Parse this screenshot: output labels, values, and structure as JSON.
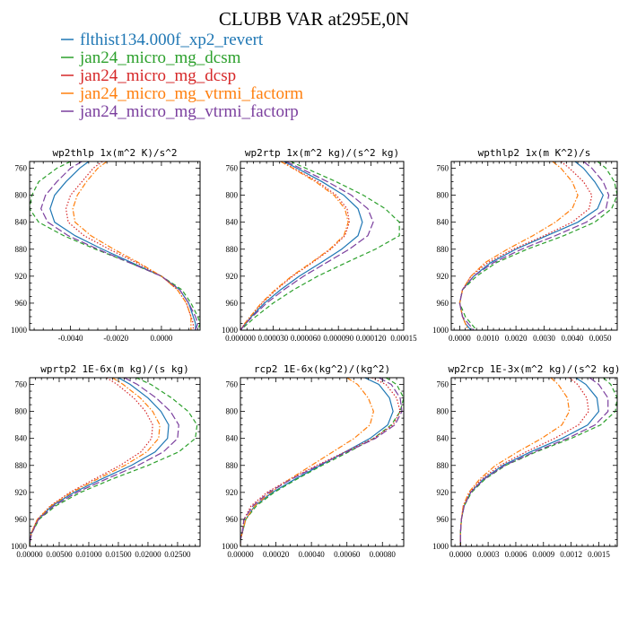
{
  "figure": {
    "title": "CLUBB VAR at295E,0N"
  },
  "chart_data": [
    {
      "type": "line",
      "title": "wp2thlp  1x(m^2 K)/s^2",
      "xlabel": "",
      "ylabel": "",
      "xlim": [
        -0.0058,
        0.0017
      ],
      "ylim": [
        750,
        1000
      ],
      "y_reversed": true,
      "xticks": [
        -0.004,
        -0.002,
        0.0
      ],
      "xtick_labels": [
        "-0.0040",
        "-0.0020",
        "0.0000"
      ],
      "yticks": [
        760,
        800,
        840,
        880,
        920,
        960,
        1000
      ],
      "y": [
        750,
        760,
        780,
        800,
        820,
        840,
        860,
        880,
        900,
        920,
        940,
        960,
        980,
        990,
        1000
      ],
      "series": [
        {
          "name": "flthist134.000f_xp2_revert",
          "values": [
            -0.0032,
            -0.0036,
            -0.0042,
            -0.0047,
            -0.0049,
            -0.0047,
            -0.0038,
            -0.0026,
            -0.0013,
            0.0,
            0.0008,
            0.0012,
            0.0014,
            0.0015,
            0.0015
          ]
        },
        {
          "name": "jan24_micro_mg_dcsm",
          "values": [
            -0.004,
            -0.0046,
            -0.0054,
            -0.0057,
            -0.0058,
            -0.0054,
            -0.0043,
            -0.0029,
            -0.0014,
            0.0,
            0.0009,
            0.0013,
            0.0016,
            0.0017,
            0.0016
          ]
        },
        {
          "name": "jan24_micro_mg_dcsp",
          "values": [
            -0.0026,
            -0.003,
            -0.0035,
            -0.004,
            -0.0042,
            -0.0041,
            -0.0034,
            -0.0023,
            -0.0011,
            0.0,
            0.0007,
            0.0011,
            0.0013,
            0.0014,
            0.0014
          ]
        },
        {
          "name": "jan24_micro_mg_vtrmi_factorm",
          "values": [
            -0.0024,
            -0.0028,
            -0.0033,
            -0.0037,
            -0.0039,
            -0.0038,
            -0.0031,
            -0.0021,
            -0.001,
            0.0,
            0.0007,
            0.0011,
            0.0013,
            0.0013,
            0.0013
          ]
        },
        {
          "name": "jan24_micro_mg_vtrmi_factorp",
          "values": [
            -0.0035,
            -0.004,
            -0.0046,
            -0.0051,
            -0.0053,
            -0.005,
            -0.0041,
            -0.0028,
            -0.0014,
            0.0,
            0.0008,
            0.0012,
            0.0015,
            0.0016,
            0.0015
          ]
        }
      ]
    },
    {
      "type": "line",
      "title": "wp2rtp  1x(m^2 kg)/(s^2 kg)",
      "xlabel": "",
      "ylabel": "",
      "xlim": [
        0.0,
        0.00015
      ],
      "ylim": [
        750,
        1000
      ],
      "y_reversed": true,
      "xticks": [
        0.0,
        3e-05,
        6e-05,
        9e-05,
        0.00012,
        0.00015
      ],
      "xtick_labels": [
        "0.000000",
        "0.000030",
        "0.000060",
        "0.000090",
        "0.000120",
        "0.00015"
      ],
      "yticks": [
        760,
        800,
        840,
        880,
        920,
        960,
        1000
      ],
      "y": [
        750,
        760,
        780,
        800,
        820,
        840,
        860,
        880,
        900,
        920,
        940,
        960,
        980,
        990,
        1000
      ],
      "series": [
        {
          "name": "flthist134.000f_xp2_revert",
          "values": [
            4e-05,
            5.2e-05,
            7.5e-05,
            9.5e-05,
            0.000108,
            0.000112,
            0.000108,
            9.3e-05,
            7.4e-05,
            5.4e-05,
            3.7e-05,
            2.2e-05,
            1e-05,
            5e-06,
            0.0
          ]
        },
        {
          "name": "jan24_micro_mg_dcsm",
          "values": [
            4.6e-05,
            6e-05,
            8.8e-05,
            0.000113,
            0.000133,
            0.000146,
            0.000146,
            0.000124,
            9.7e-05,
            7.1e-05,
            4.9e-05,
            3e-05,
            1.4e-05,
            7e-06,
            0.0
          ]
        },
        {
          "name": "jan24_micro_mg_dcsp",
          "values": [
            3.8e-05,
            4.9e-05,
            7.1e-05,
            8.8e-05,
            9.8e-05,
            0.0001,
            9.6e-05,
            8.3e-05,
            6.6e-05,
            4.8e-05,
            3.3e-05,
            2e-05,
            9e-06,
            4e-06,
            0.0
          ]
        },
        {
          "name": "jan24_micro_mg_vtrmi_factorm",
          "values": [
            3.7e-05,
            4.8e-05,
            6.9e-05,
            8.6e-05,
            9.6e-05,
            9.9e-05,
            9.5e-05,
            8.2e-05,
            6.5e-05,
            4.7e-05,
            3.2e-05,
            1.9e-05,
            9e-06,
            4e-06,
            0.0
          ]
        },
        {
          "name": "jan24_micro_mg_vtrmi_factorp",
          "values": [
            4.2e-05,
            5.5e-05,
            8e-05,
            0.000102,
            0.000117,
            0.000122,
            0.000117,
            0.0001,
            7.9e-05,
            5.8e-05,
            4e-05,
            2.4e-05,
            1.1e-05,
            5e-06,
            0.0
          ]
        }
      ]
    },
    {
      "type": "line",
      "title": "wpthlp2  1x(m K^2)/s",
      "xlabel": "",
      "ylabel": "",
      "xlim": [
        -0.0003,
        0.0056
      ],
      "ylim": [
        750,
        1000
      ],
      "y_reversed": true,
      "xticks": [
        0.0,
        0.001,
        0.002,
        0.003,
        0.004,
        0.005
      ],
      "xtick_labels": [
        "0.0000",
        "0.0010",
        "0.0020",
        "0.0030",
        "0.0040",
        "0.0050"
      ],
      "yticks": [
        760,
        800,
        840,
        880,
        920,
        960,
        1000
      ],
      "y": [
        750,
        760,
        780,
        800,
        820,
        840,
        860,
        880,
        900,
        920,
        940,
        960,
        980,
        990,
        1000
      ],
      "series": [
        {
          "name": "flthist134.000f_xp2_revert",
          "values": [
            0.0041,
            0.0044,
            0.0048,
            0.0051,
            0.0049,
            0.0042,
            0.0031,
            0.002,
            0.0011,
            0.0005,
            0.0001,
            0.0,
            0.0001,
            0.0002,
            0.0004
          ]
        },
        {
          "name": "jan24_micro_mg_dcsm",
          "values": [
            0.0049,
            0.0052,
            0.0055,
            0.0056,
            0.0054,
            0.0048,
            0.0037,
            0.0024,
            0.0013,
            0.0006,
            0.0001,
            0.0,
            0.0002,
            0.0004,
            0.0006
          ]
        },
        {
          "name": "jan24_micro_mg_dcsp",
          "values": [
            0.0036,
            0.0039,
            0.0044,
            0.0047,
            0.0046,
            0.004,
            0.003,
            0.0019,
            0.001,
            0.0004,
            0.0001,
            0.0,
            0.0001,
            0.0002,
            0.0003
          ]
        },
        {
          "name": "jan24_micro_mg_vtrmi_factorm",
          "values": [
            0.0033,
            0.0036,
            0.004,
            0.0042,
            0.004,
            0.0034,
            0.0026,
            0.0017,
            0.0009,
            0.0004,
            0.0001,
            0.0,
            0.0001,
            0.0002,
            0.0003
          ]
        },
        {
          "name": "jan24_micro_mg_vtrmi_factorp",
          "values": [
            0.0044,
            0.0047,
            0.0051,
            0.0053,
            0.0052,
            0.0045,
            0.0034,
            0.0022,
            0.0012,
            0.0005,
            0.0001,
            0.0,
            0.0001,
            0.0003,
            0.0005
          ]
        }
      ]
    },
    {
      "type": "line",
      "title": "wprtp2  1E-6x(m kg)/(s kg)",
      "xlabel": "",
      "ylabel": "",
      "xlim": [
        0.0,
        0.0288
      ],
      "ylim": [
        750,
        1000
      ],
      "y_reversed": true,
      "xticks": [
        0.0,
        0.005,
        0.01,
        0.015,
        0.02,
        0.025
      ],
      "xtick_labels": [
        "0.00000",
        "0.00500",
        "0.01000",
        "0.01500",
        "0.02000",
        "0.02500"
      ],
      "yticks": [
        760,
        800,
        840,
        880,
        920,
        960,
        1000
      ],
      "y": [
        750,
        760,
        780,
        800,
        820,
        840,
        860,
        880,
        900,
        920,
        940,
        960,
        980,
        990,
        1000
      ],
      "series": [
        {
          "name": "flthist134.000f_xp2_revert",
          "values": [
            0.015,
            0.017,
            0.02,
            0.0222,
            0.0235,
            0.0233,
            0.0212,
            0.0172,
            0.0122,
            0.0075,
            0.0038,
            0.0014,
            0.0003,
            0.0001,
            0.0
          ]
        },
        {
          "name": "jan24_micro_mg_dcsm",
          "values": [
            0.018,
            0.0205,
            0.024,
            0.0268,
            0.0283,
            0.028,
            0.0252,
            0.02,
            0.014,
            0.0086,
            0.0044,
            0.0016,
            0.0004,
            0.0001,
            0.0
          ]
        },
        {
          "name": "jan24_micro_mg_dcsp",
          "values": [
            0.013,
            0.0148,
            0.0176,
            0.0196,
            0.0208,
            0.0206,
            0.0188,
            0.0153,
            0.011,
            0.0068,
            0.0035,
            0.0013,
            0.0003,
            0.0001,
            0.0
          ]
        },
        {
          "name": "jan24_micro_mg_vtrmi_factorm",
          "values": [
            0.014,
            0.0158,
            0.0187,
            0.0208,
            0.022,
            0.0218,
            0.0198,
            0.0161,
            0.0115,
            0.0071,
            0.0036,
            0.0013,
            0.0003,
            0.0001,
            0.0
          ]
        },
        {
          "name": "jan24_micro_mg_vtrmi_factorp",
          "values": [
            0.016,
            0.0182,
            0.0214,
            0.0238,
            0.0252,
            0.025,
            0.0226,
            0.0183,
            0.013,
            0.008,
            0.0041,
            0.0015,
            0.0004,
            0.0001,
            0.0
          ]
        }
      ]
    },
    {
      "type": "line",
      "title": "rcp2  1E-6x(kg^2)/(kg^2)",
      "xlabel": "",
      "ylabel": "",
      "xlim": [
        0.0,
        0.00092
      ],
      "ylim": [
        750,
        1000
      ],
      "y_reversed": true,
      "xticks": [
        0.0,
        0.0002,
        0.0004,
        0.0006,
        0.0008
      ],
      "xtick_labels": [
        "0.00000",
        "0.00020",
        "0.00040",
        "0.00060",
        "0.00080"
      ],
      "yticks": [
        760,
        800,
        840,
        880,
        920,
        960,
        1000
      ],
      "y": [
        750,
        760,
        780,
        800,
        820,
        840,
        860,
        880,
        900,
        920,
        940,
        960,
        980,
        990,
        1000
      ],
      "series": [
        {
          "name": "flthist134.000f_xp2_revert",
          "values": [
            0.0007,
            0.00078,
            0.00084,
            0.00086,
            0.00083,
            0.00073,
            0.00059,
            0.00045,
            0.00031,
            0.00018,
            8e-05,
            3e-05,
            1e-05,
            0.0,
            0.0
          ]
        },
        {
          "name": "jan24_micro_mg_dcsm",
          "values": [
            0.00082,
            0.00088,
            0.00092,
            0.0009,
            0.00085,
            0.00075,
            0.00061,
            0.00046,
            0.00032,
            0.00019,
            9e-05,
            3e-05,
            1e-05,
            0.0,
            0.0
          ]
        },
        {
          "name": "jan24_micro_mg_dcsp",
          "values": [
            0.00074,
            0.00082,
            0.00088,
            0.0009,
            0.00086,
            0.00075,
            0.00059,
            0.00043,
            0.00028,
            0.00015,
            6e-05,
            2e-05,
            1e-05,
            0.0,
            0.0
          ]
        },
        {
          "name": "jan24_micro_mg_vtrmi_factorm",
          "values": [
            0.0006,
            0.00066,
            0.00072,
            0.00075,
            0.00073,
            0.00064,
            0.00052,
            0.0004,
            0.00028,
            0.00017,
            8e-05,
            3e-05,
            1e-05,
            0.0,
            0.0
          ]
        },
        {
          "name": "jan24_micro_mg_vtrmi_factorp",
          "values": [
            0.00078,
            0.00085,
            0.0009,
            0.00091,
            0.00087,
            0.00076,
            0.0006,
            0.00044,
            0.00029,
            0.00016,
            7e-05,
            2e-05,
            1e-05,
            0.0,
            0.0
          ]
        }
      ]
    },
    {
      "type": "line",
      "title": "wp2rcp  1E-3x(m^2 kg)/(s^2 kg)",
      "xlabel": "",
      "ylabel": "",
      "xlim": [
        -0.0001,
        0.0017
      ],
      "ylim": [
        750,
        1000
      ],
      "y_reversed": true,
      "xticks": [
        0.0,
        0.0003,
        0.0006,
        0.0009,
        0.0012,
        0.0015
      ],
      "xtick_labels": [
        "0.0000",
        "0.0003",
        "0.0006",
        "0.0009",
        "0.0012",
        "0.0015"
      ],
      "yticks": [
        760,
        800,
        840,
        880,
        920,
        960,
        1000
      ],
      "y": [
        750,
        760,
        780,
        800,
        820,
        840,
        860,
        880,
        900,
        920,
        940,
        960,
        980,
        990,
        1000
      ],
      "series": [
        {
          "name": "flthist134.000f_xp2_revert",
          "values": [
            0.00125,
            0.00136,
            0.00148,
            0.0015,
            0.00138,
            0.0011,
            0.00076,
            0.00046,
            0.00025,
            0.00011,
            4e-05,
            1e-05,
            0.0,
            0.0,
            0.0
          ]
        },
        {
          "name": "jan24_micro_mg_dcsm",
          "values": [
            0.00155,
            0.00163,
            0.0017,
            0.00168,
            0.00152,
            0.0012,
            0.00082,
            0.00049,
            0.00027,
            0.00012,
            4e-05,
            1e-05,
            0.0,
            0.0,
            0.0
          ]
        },
        {
          "name": "jan24_micro_mg_dcsp",
          "values": [
            0.00118,
            0.00127,
            0.00137,
            0.00139,
            0.00128,
            0.00102,
            0.00071,
            0.00043,
            0.00023,
            0.0001,
            3e-05,
            1e-05,
            0.0,
            0.0,
            0.0
          ]
        },
        {
          "name": "jan24_micro_mg_vtrmi_factorm",
          "values": [
            0.00098,
            0.00106,
            0.00116,
            0.00118,
            0.0011,
            0.00088,
            0.00062,
            0.00038,
            0.00021,
            9e-05,
            3e-05,
            1e-05,
            0.0,
            0.0,
            0.0
          ]
        },
        {
          "name": "jan24_micro_mg_vtrmi_factorp",
          "values": [
            0.0014,
            0.0015,
            0.0016,
            0.0016,
            0.00146,
            0.00116,
            0.0008,
            0.00048,
            0.00026,
            0.00011,
            4e-05,
            1e-05,
            0.0,
            0.0,
            0.0
          ]
        }
      ]
    }
  ],
  "legend": [
    {
      "label": "flthist134.000f_xp2_revert",
      "color": "#1f77b4",
      "dash": "solid"
    },
    {
      "label": "jan24_micro_mg_dcsm",
      "color": "#2ca02c",
      "dash": "dashed"
    },
    {
      "label": "jan24_micro_mg_dcsp",
      "color": "#d62728",
      "dash": "dotted"
    },
    {
      "label": "jan24_micro_mg_vtrmi_factorm",
      "color": "#ff7f0e",
      "dash": "dashdot"
    },
    {
      "label": "jan24_micro_mg_vtrmi_factorp",
      "color": "#7b3f9e",
      "dash": "longdash"
    }
  ]
}
